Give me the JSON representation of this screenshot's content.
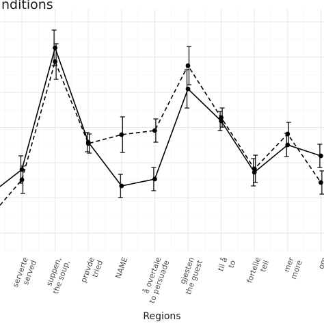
{
  "chart_data": {
    "type": "line",
    "title": "nditions",
    "xlabel": "Regions",
    "ylabel": "",
    "grid": true,
    "categories": [
      [
        "serverte",
        "served"
      ],
      [
        "suppen,",
        "the soup,"
      ],
      [
        "prøvde",
        "tried"
      ],
      [
        "NAME",
        ""
      ],
      [
        "å overtale",
        "to persuade"
      ],
      [
        "gjesten",
        "the guest"
      ],
      [
        "til å",
        "to"
      ],
      [
        "fortelle",
        "tell"
      ],
      [
        "mer",
        "more"
      ],
      [
        "om",
        "abo"
      ]
    ],
    "series": [
      {
        "style": "solid",
        "values": [
          248,
          70,
          208,
          272,
          262,
          130,
          177,
          252,
          212,
          228
        ],
        "errors": [
          20,
          26,
          14,
          17,
          17,
          28,
          14,
          20,
          17,
          17
        ]
      },
      {
        "style": "dashed",
        "values": [
          263,
          90,
          210,
          197,
          191,
          96,
          172,
          247,
          196,
          267
        ],
        "errors": [
          20,
          26,
          14,
          26,
          17,
          28,
          14,
          20,
          17,
          17
        ]
      }
    ],
    "partial_left_points": {
      "solid": 278,
      "dashed": 308
    }
  }
}
